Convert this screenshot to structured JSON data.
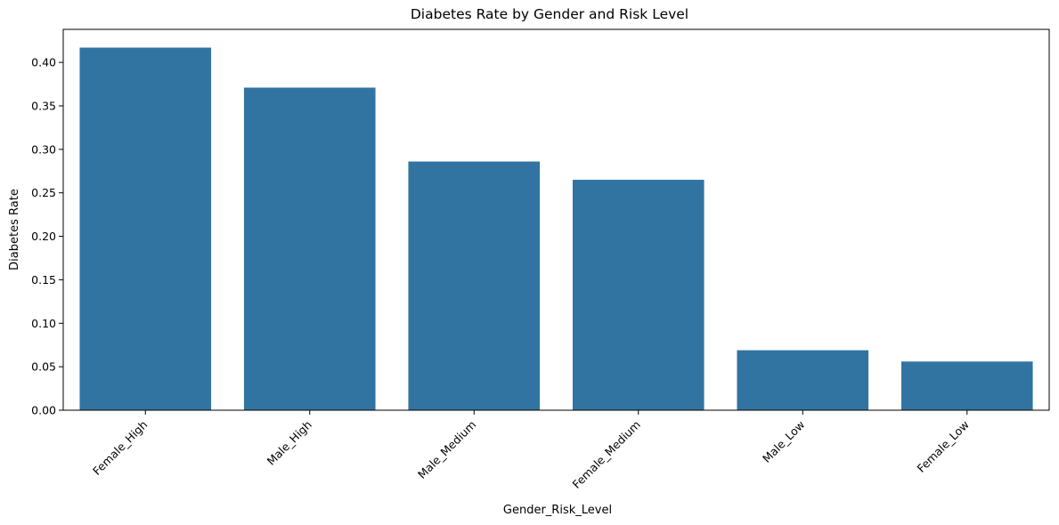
{
  "chart_data": {
    "type": "bar",
    "title": "Diabetes Rate by Gender and Risk Level",
    "xlabel": "Gender_Risk_Level",
    "ylabel": "Diabetes Rate",
    "categories": [
      "Female_High",
      "Male_High",
      "Male_Medium",
      "Female_Medium",
      "Male_Low",
      "Female_Low"
    ],
    "values": [
      0.417,
      0.371,
      0.286,
      0.265,
      0.069,
      0.056
    ],
    "ylim": [
      0,
      0.438
    ],
    "yticks": [
      0.0,
      0.05,
      0.1,
      0.15,
      0.2,
      0.25,
      0.3,
      0.35,
      0.4
    ],
    "ytick_labels": [
      "0.00",
      "0.05",
      "0.10",
      "0.15",
      "0.20",
      "0.25",
      "0.30",
      "0.35",
      "0.40"
    ],
    "grid": false,
    "legend": "none",
    "colors": {
      "bar": "#3274a1",
      "axis": "#000000",
      "background": "#ffffff"
    }
  }
}
